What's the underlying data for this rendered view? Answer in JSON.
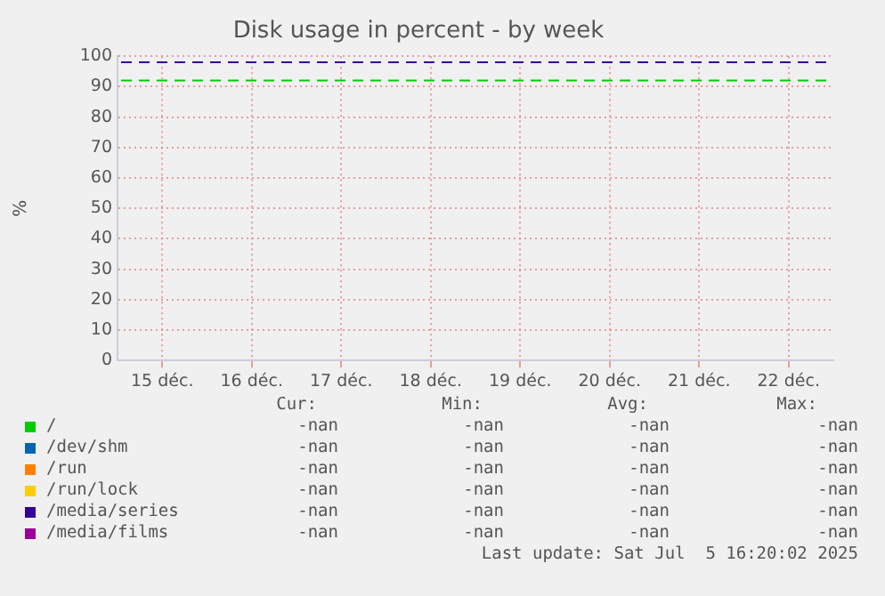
{
  "chart_data": {
    "type": "line",
    "title": "Disk usage in percent - by week",
    "ylabel": "%",
    "categories": [
      "15 déc.",
      "16 déc.",
      "17 déc.",
      "18 déc.",
      "19 déc.",
      "20 déc.",
      "21 déc.",
      "22 déc."
    ],
    "ylim": [
      0,
      100
    ],
    "yticks": [
      0,
      10,
      20,
      30,
      40,
      50,
      60,
      70,
      80,
      90,
      100
    ],
    "grid": true,
    "legend": "bottom",
    "series": [
      {
        "name": "/",
        "color": "#00cc00",
        "values": [
          null,
          null,
          null,
          null,
          null,
          null,
          null,
          null
        ]
      },
      {
        "name": "/dev/shm",
        "color": "#0066b3",
        "values": [
          null,
          null,
          null,
          null,
          null,
          null,
          null,
          null
        ]
      },
      {
        "name": "/run",
        "color": "#ff8000",
        "values": [
          null,
          null,
          null,
          null,
          null,
          null,
          null,
          null
        ]
      },
      {
        "name": "/run/lock",
        "color": "#ffcc00",
        "values": [
          null,
          null,
          null,
          null,
          null,
          null,
          null,
          null
        ]
      },
      {
        "name": "/media/series",
        "color": "#330099",
        "values": [
          null,
          null,
          null,
          null,
          null,
          null,
          null,
          null
        ]
      },
      {
        "name": "/media/films",
        "color": "#990099",
        "values": [
          null,
          null,
          null,
          null,
          null,
          null,
          null,
          null
        ]
      }
    ],
    "ref_lines": [
      {
        "axis": "y",
        "value": 98,
        "color": "#330099",
        "line_style": "dashed"
      },
      {
        "axis": "y",
        "value": 92,
        "color": "#00cc00",
        "line_style": "dashed"
      }
    ],
    "annotations": [
      "Cur:",
      "Min:",
      "Avg:",
      "Max:",
      "-nan",
      "-nan",
      "-nan",
      "-nan",
      "-nan",
      "-nan",
      "-nan",
      "-nan",
      "-nan",
      "-nan",
      "-nan",
      "-nan",
      "-nan",
      "-nan",
      "-nan",
      "-nan",
      "-nan",
      "-nan",
      "-nan",
      "-nan",
      "-nan",
      "-nan",
      "-nan",
      "-nan",
      "Last update: Sat Jul  5 16:20:02 2025"
    ]
  }
}
